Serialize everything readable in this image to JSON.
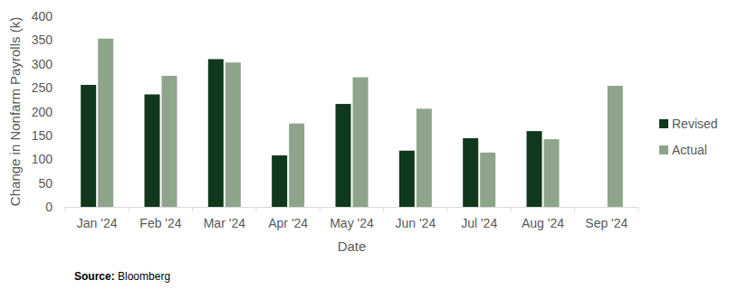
{
  "chart_data": {
    "type": "bar",
    "x_label": "Date",
    "y_label": "Change in Nonfarm Payrolls (k)",
    "source": "Source: Bloomberg",
    "categories": [
      "Jan '24",
      "Feb '24",
      "Mar '24",
      "Apr '24",
      "May '24",
      "Jun '24",
      "Jul '24",
      "Aug '24",
      "Sep '24"
    ],
    "series": [
      {
        "name": "Revised",
        "color": "#10381d",
        "values": [
          256,
          236,
          310,
          108,
          216,
          118,
          144,
          159,
          null
        ]
      },
      {
        "name": "Actual",
        "color": "#8ea58b",
        "values": [
          353,
          275,
          303,
          175,
          272,
          206,
          114,
          142,
          254
        ]
      }
    ],
    "ylim": [
      0,
      400
    ],
    "yticks": [
      0,
      50,
      100,
      150,
      200,
      250,
      300,
      350,
      400
    ],
    "grid": false,
    "legend": "right"
  }
}
